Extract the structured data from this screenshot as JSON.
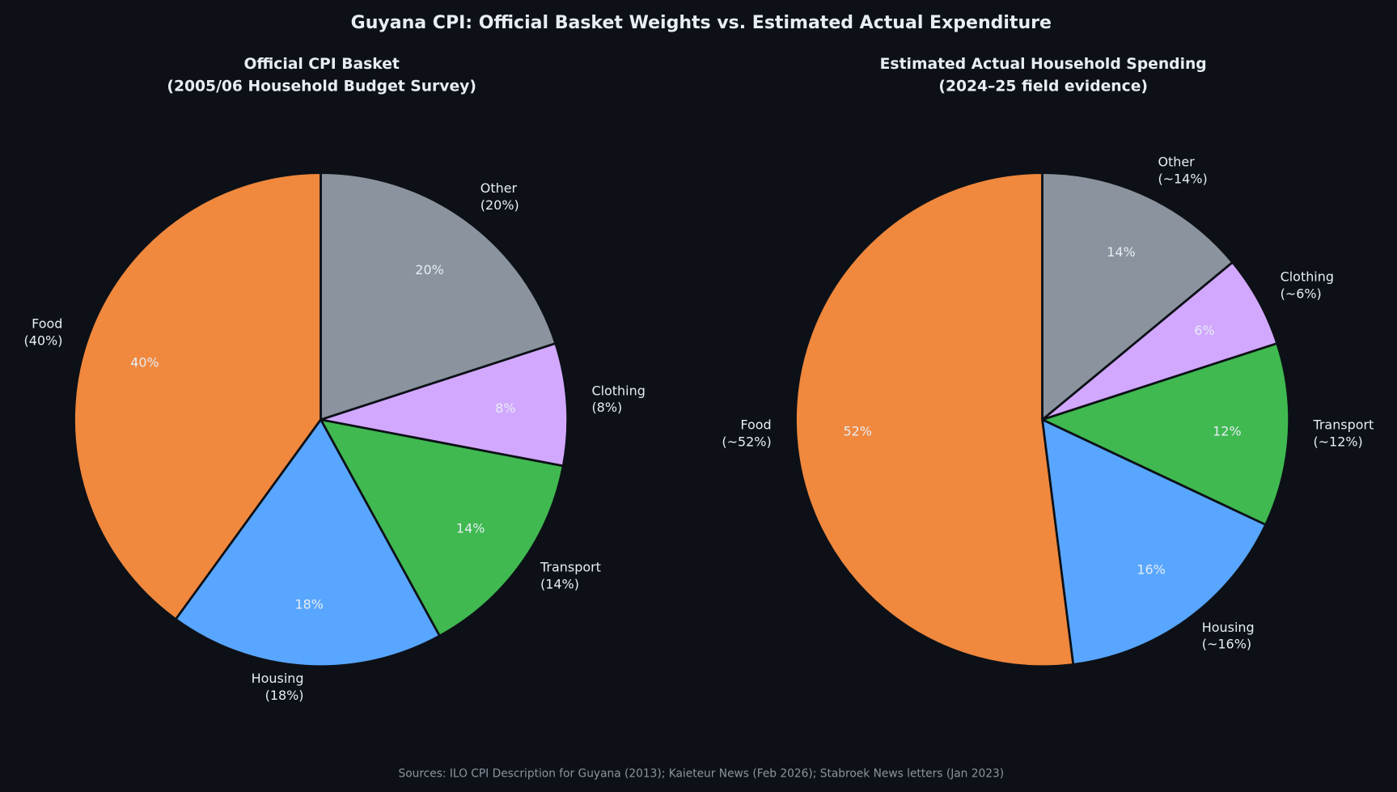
{
  "chart_data": [
    {
      "type": "pie",
      "title": "Official CPI Basket",
      "subtitle": "(2005/06 Household Budget Survey)",
      "start_angle": 90,
      "direction": "counterclockwise",
      "categories": [
        "Food",
        "Housing",
        "Transport",
        "Clothing",
        "Other"
      ],
      "values": [
        40,
        18,
        14,
        8,
        20
      ],
      "labels": [
        "Food\n(40%)",
        "Housing\n(18%)",
        "Transport\n(14%)",
        "Clothing\n(8%)",
        "Other\n(20%)"
      ],
      "pct_labels": [
        "40%",
        "18%",
        "14%",
        "8%",
        "20%"
      ]
    },
    {
      "type": "pie",
      "title": "Estimated Actual Household Spending",
      "subtitle": "(2024–25 field evidence)",
      "start_angle": 90,
      "direction": "counterclockwise",
      "categories": [
        "Food",
        "Housing",
        "Transport",
        "Clothing",
        "Other"
      ],
      "values": [
        52,
        16,
        12,
        6,
        14
      ],
      "labels": [
        "Food\n(~52%)",
        "Housing\n(~16%)",
        "Transport\n(~12%)",
        "Clothing\n(~6%)",
        "Other\n(~14%)"
      ],
      "pct_labels": [
        "52%",
        "16%",
        "12%",
        "6%",
        "14%"
      ]
    }
  ],
  "suptitle": "Guyana CPI: Official Basket Weights vs. Estimated Actual Expenditure",
  "sources": "Sources: ILO CPI Description for Guyana (2013); Kaieteur News (Feb 2026); Stabroek News letters (Jan 2023)",
  "colors": {
    "Food": "#f0883e",
    "Housing": "#58a6ff",
    "Transport": "#3fb950",
    "Clothing": "#d2a8ff",
    "Other": "#8b949e",
    "background": "#0d1117",
    "edge": "#0d1117"
  }
}
